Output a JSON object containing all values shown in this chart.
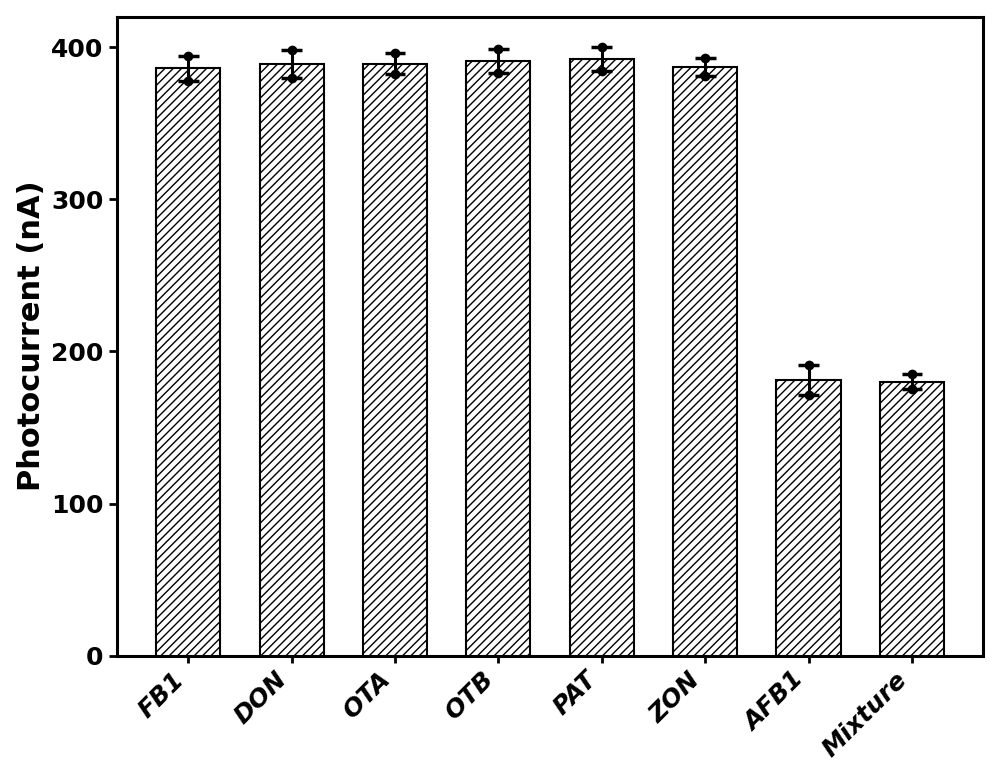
{
  "categories": [
    "FB1",
    "DON",
    "OTA",
    "OTB",
    "PAT",
    "ZON",
    "AFB1",
    "Mixture"
  ],
  "values": [
    386,
    389,
    389,
    391,
    392,
    387,
    181,
    180
  ],
  "errors": [
    8,
    9,
    7,
    8,
    8,
    6,
    10,
    5
  ],
  "ylabel": "Photocurrent (nA)",
  "ylim": [
    0,
    420
  ],
  "yticks": [
    0,
    100,
    200,
    300,
    400
  ],
  "bar_facecolor": "white",
  "bar_edgecolor": "black",
  "hatch": "////",
  "bar_linewidth": 1.5,
  "ylabel_fontsize": 22,
  "tick_fontsize": 18,
  "figure_bg": "white",
  "axes_bg": "white",
  "bar_width": 0.62
}
